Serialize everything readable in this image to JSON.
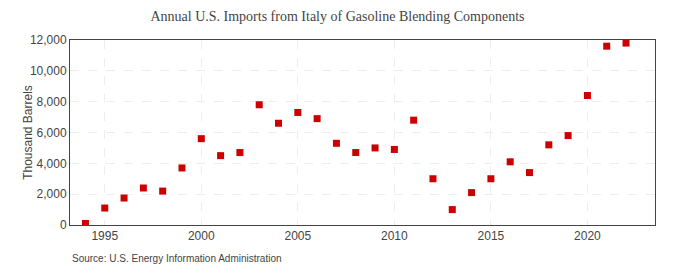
{
  "chart_data": {
    "type": "scatter",
    "title": "Annual U.S. Imports from Italy of Gasoline Blending Components",
    "ylabel": "Thousand Barrels",
    "annotations": [
      "Source: U.S. Energy Information Administration"
    ],
    "x": [
      1994,
      1995,
      1996,
      1997,
      1998,
      1999,
      2000,
      2001,
      2002,
      2003,
      2004,
      2005,
      2006,
      2007,
      2008,
      2009,
      2010,
      2011,
      2012,
      2013,
      2014,
      2015,
      2016,
      2017,
      2018,
      2019,
      2020,
      2021,
      2022
    ],
    "values": [
      100,
      1100,
      1750,
      2400,
      2200,
      3700,
      5600,
      4500,
      4700,
      7800,
      6600,
      7300,
      6900,
      5300,
      4700,
      5000,
      4900,
      6800,
      3000,
      1000,
      2100,
      3000,
      4100,
      3400,
      5200,
      5800,
      8400,
      11600,
      11800
    ],
    "color": "#cc0000",
    "marker": "square",
    "xlim": [
      1993.2,
      2023.5
    ],
    "xticks": [
      1995,
      2000,
      2005,
      2010,
      2015,
      2020
    ],
    "ylim": [
      0,
      12000
    ],
    "yticks": [
      0,
      {
        "value": 2000,
        "label": "2,000"
      },
      {
        "value": 4000,
        "label": "4,000"
      },
      {
        "value": 6000,
        "label": "6,000"
      },
      {
        "value": 8000,
        "label": "8,000"
      },
      {
        "value": 10000,
        "label": "10,000"
      },
      {
        "value": 12000,
        "label": "12,000"
      }
    ],
    "grid": true
  }
}
